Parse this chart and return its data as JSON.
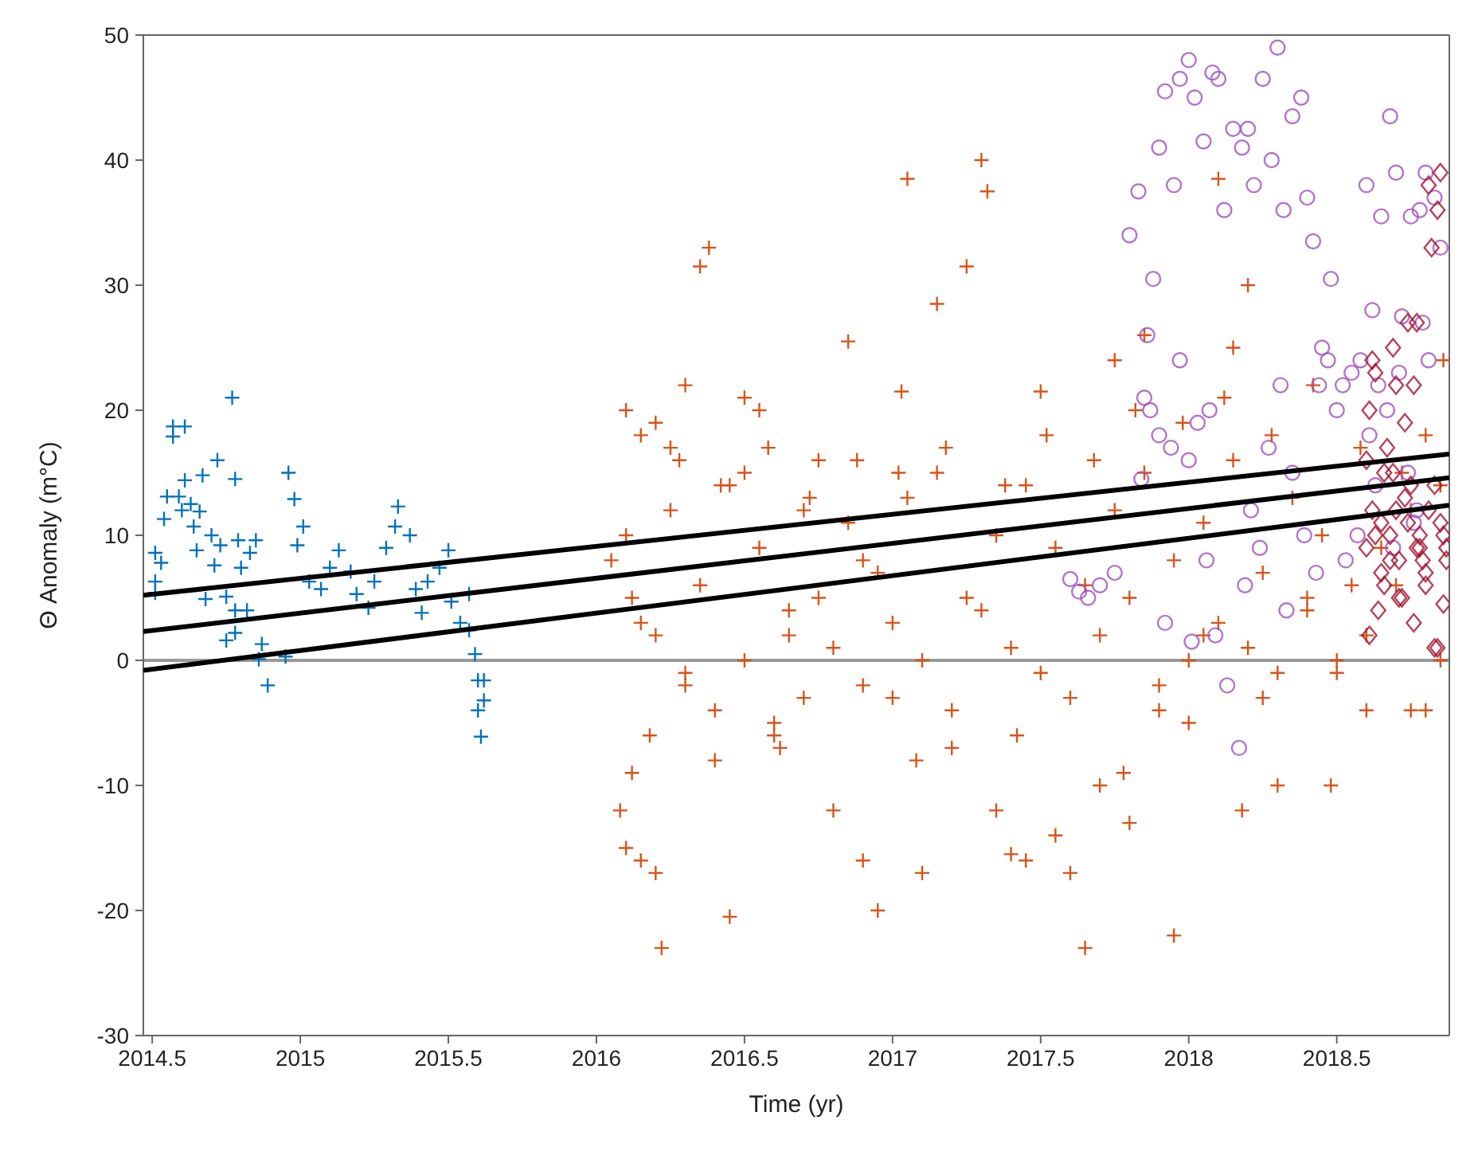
{
  "chart_data": {
    "type": "scatter",
    "xlabel": "Time (yr)",
    "ylabel": "Θ Anomaly (m°C)",
    "xlim": [
      2014.47,
      2018.88
    ],
    "ylim": [
      -30,
      50
    ],
    "xticks": [
      2014.5,
      2015,
      2015.5,
      2016,
      2016.5,
      2017,
      2017.5,
      2018,
      2018.5
    ],
    "yticks": [
      -30,
      -20,
      -10,
      0,
      10,
      20,
      30,
      40,
      50
    ],
    "ref_lines": [
      {
        "axis": "y",
        "value": 0,
        "color": "#999999"
      }
    ],
    "series": [
      {
        "color": "#0072bd",
        "marker": "cross",
        "x": [
          2014.77,
          2014.57,
          2014.61,
          2014.57,
          2014.72,
          2014.67,
          2014.61,
          2014.78,
          2014.55,
          2014.59,
          2014.63,
          2014.66,
          2014.54,
          2014.64,
          2014.96,
          2014.98,
          2015.01,
          2014.99,
          2014.51,
          2014.53,
          2014.51,
          2014.65,
          2014.73,
          2014.79,
          2014.85,
          2014.83,
          2014.71,
          2014.8,
          2014.68,
          2014.75,
          2014.78,
          2014.82,
          2014.78,
          2014.75,
          2014.87,
          2014.86,
          2014.95,
          2014.89,
          2015.13,
          2015.1,
          2015.03,
          2015.07,
          2015.17,
          2015.19,
          2015.23,
          2015.25,
          2015.29,
          2015.33,
          2015.32,
          2015.37,
          2015.39,
          2015.43,
          2015.41,
          2015.47,
          2015.5,
          2015.51,
          2015.54,
          2015.57,
          2015.57,
          2015.59,
          2015.6,
          2015.62,
          2015.62,
          2015.6,
          2015.61,
          2014.51,
          2014.6,
          2014.7
        ],
        "values": [
          21,
          18.7,
          18.7,
          17.9,
          16,
          14.8,
          14.4,
          14.5,
          13.1,
          13.1,
          12.5,
          11.9,
          11.3,
          10.7,
          15,
          12.9,
          10.7,
          9.2,
          8.6,
          7.8,
          6.3,
          8.8,
          9.2,
          9.6,
          9.6,
          8.6,
          7.6,
          7.4,
          4.9,
          5.1,
          4,
          4,
          2.2,
          1.6,
          1.3,
          0.1,
          0.3,
          -2,
          8.8,
          7.4,
          6.3,
          5.7,
          7.1,
          5.3,
          4.2,
          6.3,
          9,
          12.3,
          10.7,
          10,
          5.7,
          6.3,
          3.8,
          7.4,
          8.8,
          4.7,
          3,
          2.4,
          5.3,
          0.5,
          -1.6,
          -1.6,
          -3.2,
          -4,
          -6.1,
          5.4,
          12,
          10
        ]
      },
      {
        "color": "#d95319",
        "marker": "cross",
        "x": [
          2016.08,
          2016.1,
          2016.12,
          2016.15,
          2016.2,
          2016.22,
          2016.1,
          2016.15,
          2016.2,
          2016.25,
          2016.1,
          2016.12,
          2016.3,
          2016.35,
          2016.38,
          2016.45,
          2016.4,
          2016.3,
          2016.5,
          2016.55,
          2016.5,
          2016.6,
          2016.65,
          2016.7,
          2016.75,
          2016.8,
          2016.85,
          2016.9,
          2016.95,
          2016.9,
          2017,
          2017.03,
          2017.05,
          2017.1,
          2017.15,
          2017.2,
          2017.25,
          2017.3,
          2017.32,
          2017.35,
          2017.4,
          2017.45,
          2017.5,
          2017.55,
          2017.6,
          2017.65,
          2017.7,
          2017.75,
          2017.8,
          2017.85,
          2017.9,
          2017.95,
          2018,
          2018.05,
          2018.1,
          2018.15,
          2018.2,
          2018.25,
          2018.3,
          2018.4,
          2018.5,
          2018.6,
          2018.75,
          2018.8,
          2018.85,
          2016.05,
          2016.15,
          2016.25,
          2016.35,
          2016.45,
          2016.55,
          2016.65,
          2016.75,
          2016.85,
          2016.95,
          2017.05,
          2017.15,
          2017.25,
          2017.35,
          2017.45,
          2017.55,
          2017.65,
          2017.75,
          2017.85,
          2017.95,
          2018.05,
          2018.15,
          2018.25,
          2018.35,
          2018.45,
          2018.55,
          2018.65,
          2018.75,
          2018.85,
          2016.2,
          2016.3,
          2016.4,
          2016.5,
          2016.6,
          2016.7,
          2016.8,
          2016.9,
          2017,
          2017.1,
          2017.2,
          2017.3,
          2017.4,
          2017.5,
          2017.6,
          2017.7,
          2017.8,
          2017.9,
          2018,
          2018.1,
          2018.2,
          2018.3,
          2018.4,
          2018.5,
          2018.6,
          2018.7,
          2018.8,
          2016.28,
          2016.42,
          2016.58,
          2016.72,
          2016.88,
          2017.02,
          2017.18,
          2017.38,
          2017.52,
          2017.68,
          2017.82,
          2017.98,
          2018.12,
          2018.28,
          2018.42,
          2018.58,
          2018.72,
          2018.86,
          2016.18,
          2016.62,
          2017.08,
          2017.42,
          2017.78,
          2018.18,
          2018.48
        ],
        "values": [
          -12,
          -15,
          -9,
          -16,
          -17,
          -23,
          20,
          18,
          19,
          17,
          10,
          5,
          22,
          31.5,
          33,
          -20.5,
          -8,
          -1,
          21,
          20,
          15,
          -6,
          2,
          12,
          5,
          -12,
          25.5,
          -16,
          -20,
          8,
          -3,
          21.5,
          38.5,
          -17,
          28.5,
          -7,
          31.5,
          40,
          37.5,
          -12,
          -15.5,
          -16,
          21.5,
          -14,
          -17,
          -23,
          -10,
          24,
          -13,
          26,
          -4,
          -22,
          -5,
          2,
          38.5,
          25,
          30,
          -3,
          -10,
          5,
          -1,
          -4,
          -4,
          -4,
          0,
          8,
          3,
          12,
          6,
          14,
          9,
          4,
          16,
          11,
          7,
          13,
          15,
          5,
          10,
          14,
          9,
          6,
          12,
          15,
          8,
          11,
          16,
          7,
          13,
          10,
          6,
          9,
          12,
          14,
          2,
          -2,
          -4,
          0,
          -5,
          -3,
          1,
          -2,
          3,
          0,
          -4,
          4,
          1,
          -1,
          -3,
          2,
          5,
          -2,
          0,
          3,
          1,
          -1,
          4,
          0,
          2,
          6,
          18,
          16,
          14,
          17,
          13,
          16,
          15,
          17,
          14,
          18,
          16,
          20,
          19,
          21,
          18,
          22,
          17,
          15,
          24,
          -6,
          -7,
          -8,
          -6,
          -9,
          -12,
          -10
        ]
      },
      {
        "color": "#a050c0",
        "marker": "circle",
        "x": [
          2017.6,
          2017.63,
          2017.66,
          2017.7,
          2017.75,
          2017.8,
          2017.83,
          2017.85,
          2017.88,
          2017.9,
          2017.92,
          2017.95,
          2017.97,
          2018,
          2018.02,
          2018.05,
          2018.08,
          2018.1,
          2018.12,
          2018.15,
          2018.18,
          2018.2,
          2018.22,
          2018.25,
          2018.28,
          2018.3,
          2018.32,
          2018.35,
          2018.38,
          2018.4,
          2018.42,
          2018.45,
          2018.48,
          2018.5,
          2018.52,
          2018.55,
          2018.58,
          2018.6,
          2018.62,
          2018.65,
          2018.68,
          2018.7,
          2018.72,
          2018.75,
          2018.78,
          2018.8,
          2018.83,
          2018.85,
          2017.84,
          2017.87,
          2017.9,
          2017.94,
          2017.97,
          2018,
          2018.03,
          2018.06,
          2018.09,
          2018.13,
          2018.17,
          2018.21,
          2018.24,
          2018.27,
          2018.31,
          2018.35,
          2018.39,
          2018.43,
          2018.47,
          2018.53,
          2018.57,
          2018.61,
          2018.64,
          2018.67,
          2018.71,
          2018.74,
          2018.77,
          2018.81,
          2017.86,
          2017.92,
          2018.01,
          2018.07,
          2018.19,
          2018.33,
          2018.44,
          2018.63,
          2018.69,
          2018.76,
          2018.79
        ],
        "values": [
          6.5,
          5.5,
          5,
          6,
          7,
          34,
          37.5,
          21,
          30.5,
          41,
          45.5,
          38,
          46.5,
          48,
          45,
          41.5,
          47,
          46.5,
          36,
          42.5,
          41,
          42.5,
          38,
          46.5,
          40,
          49,
          36,
          43.5,
          45,
          37,
          33.5,
          25,
          30.5,
          20,
          22,
          23,
          24,
          38,
          28,
          35.5,
          43.5,
          39,
          27.5,
          35.5,
          36,
          39,
          37,
          33,
          14.5,
          20,
          18,
          17,
          24,
          16,
          19,
          8,
          2,
          -2,
          -7,
          12,
          9,
          17,
          22,
          15,
          10,
          7,
          24,
          8,
          10,
          18,
          22,
          20,
          23,
          15,
          12,
          24,
          26,
          3,
          1.5,
          20,
          6,
          4,
          22,
          14,
          9,
          11,
          27
        ]
      },
      {
        "color": "#a2142f",
        "marker": "diamond",
        "x": [
          2018.6,
          2018.62,
          2018.63,
          2018.65,
          2018.66,
          2018.68,
          2018.7,
          2018.71,
          2018.72,
          2018.74,
          2018.75,
          2018.77,
          2018.78,
          2018.8,
          2018.81,
          2018.82,
          2018.84,
          2018.85,
          2018.86,
          2018.87,
          2018.61,
          2018.64,
          2018.67,
          2018.69,
          2018.73,
          2018.76,
          2018.79,
          2018.83,
          2018.6,
          2018.63,
          2018.66,
          2018.7,
          2018.73,
          2018.77,
          2018.8,
          2018.83,
          2018.86,
          2018.62,
          2018.65,
          2018.68,
          2018.71,
          2018.74,
          2018.78,
          2018.81,
          2018.85,
          2018.87,
          2018.61,
          2018.69,
          2018.76,
          2018.84
        ],
        "values": [
          9,
          12,
          23,
          7,
          15,
          10,
          22,
          8,
          5,
          11,
          14,
          27,
          9,
          6,
          12,
          33,
          36,
          39,
          10,
          8,
          20,
          4,
          17,
          25,
          13,
          3,
          8,
          1,
          16,
          10,
          6,
          12,
          19,
          9,
          7,
          14,
          4.5,
          24,
          11,
          8,
          5,
          27,
          10,
          38,
          11,
          9,
          2,
          15,
          22,
          1
        ]
      },
      {
        "type": "line",
        "color": "#000000",
        "x": [
          2014.47,
          2018.88
        ],
        "values": [
          5.2,
          16.5
        ]
      },
      {
        "type": "line",
        "color": "#000000",
        "x": [
          2014.47,
          2018.88
        ],
        "values": [
          2.3,
          14.6
        ]
      },
      {
        "type": "line",
        "color": "#000000",
        "x": [
          2014.47,
          2018.88
        ],
        "values": [
          -0.8,
          12.4
        ]
      }
    ]
  }
}
